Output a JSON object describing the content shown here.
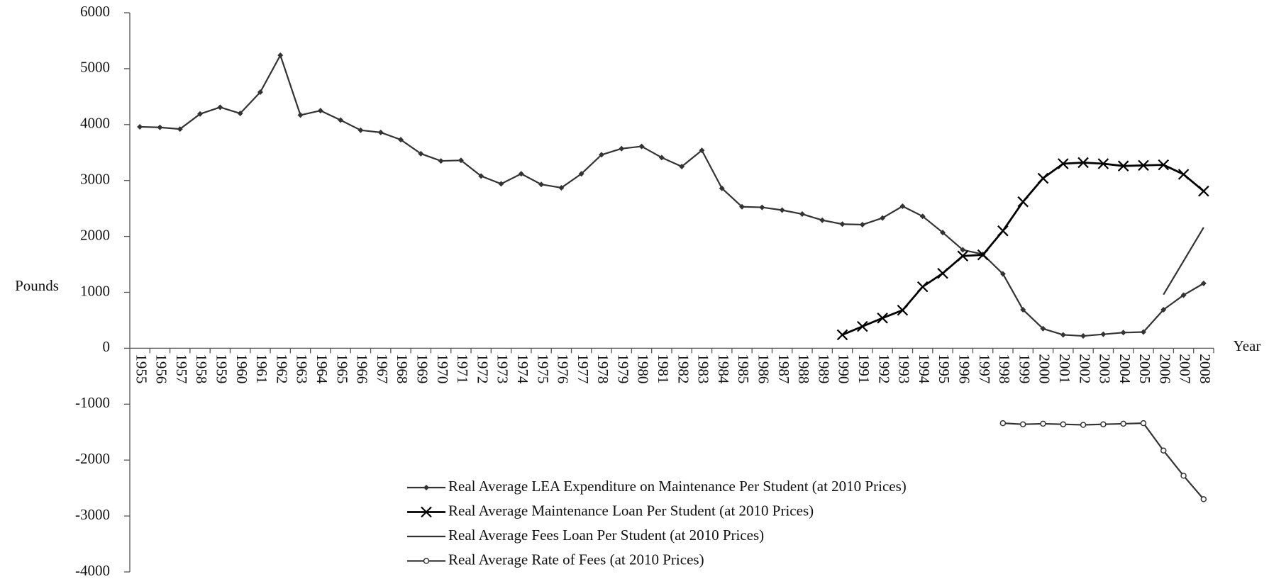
{
  "chart_data": {
    "type": "line",
    "x_label": "Year",
    "y_label": "Pounds",
    "categories": [
      1955,
      1956,
      1957,
      1958,
      1959,
      1960,
      1961,
      1962,
      1963,
      1964,
      1965,
      1966,
      1967,
      1968,
      1969,
      1970,
      1971,
      1972,
      1973,
      1974,
      1975,
      1976,
      1977,
      1978,
      1979,
      1980,
      1981,
      1982,
      1983,
      1984,
      1985,
      1986,
      1987,
      1988,
      1989,
      1990,
      1991,
      1992,
      1993,
      1994,
      1995,
      1996,
      1997,
      1998,
      1999,
      2000,
      2001,
      2002,
      2003,
      2004,
      2005,
      2006,
      2007,
      2008
    ],
    "ylim": [
      -4000,
      6000
    ],
    "yticks": [
      -4000,
      -3000,
      -2000,
      -1000,
      0,
      1000,
      2000,
      3000,
      4000,
      5000,
      6000
    ],
    "series": [
      {
        "name": "Real Average LEA Expenditure on Maintenance Per Student (at 2010 Prices)",
        "color": "#333333",
        "marker": "diamond",
        "values": [
          3960,
          3950,
          3920,
          4190,
          4310,
          4200,
          4580,
          5240,
          4170,
          4250,
          4080,
          3900,
          3860,
          3730,
          3480,
          3350,
          3360,
          3080,
          2940,
          3120,
          2930,
          2870,
          3120,
          3460,
          3570,
          3610,
          3410,
          3250,
          3540,
          2860,
          2530,
          2520,
          2470,
          2400,
          2290,
          2220,
          2210,
          2330,
          2540,
          2360,
          2070,
          1760,
          1680,
          1330,
          690,
          350,
          240,
          220,
          250,
          280,
          290,
          690,
          950,
          1160
        ]
      },
      {
        "name": "Real Average Maintenance Loan Per Student (at 2010 Prices)",
        "color": "#000000",
        "marker": "x",
        "values": [
          null,
          null,
          null,
          null,
          null,
          null,
          null,
          null,
          null,
          null,
          null,
          null,
          null,
          null,
          null,
          null,
          null,
          null,
          null,
          null,
          null,
          null,
          null,
          null,
          null,
          null,
          null,
          null,
          null,
          null,
          null,
          null,
          null,
          null,
          null,
          240,
          390,
          540,
          680,
          1100,
          1340,
          1650,
          1670,
          2100,
          2620,
          3040,
          3300,
          3320,
          3300,
          3260,
          3270,
          3280,
          3110,
          2810
        ]
      },
      {
        "name": "Real Average Fees Loan Per Student (at 2010 Prices)",
        "color": "#333333",
        "marker": "none",
        "values": [
          null,
          null,
          null,
          null,
          null,
          null,
          null,
          null,
          null,
          null,
          null,
          null,
          null,
          null,
          null,
          null,
          null,
          null,
          null,
          null,
          null,
          null,
          null,
          null,
          null,
          null,
          null,
          null,
          null,
          null,
          null,
          null,
          null,
          null,
          null,
          null,
          null,
          null,
          null,
          null,
          null,
          null,
          null,
          null,
          null,
          null,
          null,
          null,
          null,
          null,
          null,
          960,
          1560,
          2160
        ]
      },
      {
        "name": "Real Average Rate of Fees (at 2010 Prices)",
        "color": "#333333",
        "marker": "circle",
        "values": [
          null,
          null,
          null,
          null,
          null,
          null,
          null,
          null,
          null,
          null,
          null,
          null,
          null,
          null,
          null,
          null,
          null,
          null,
          null,
          null,
          null,
          null,
          null,
          null,
          null,
          null,
          null,
          null,
          null,
          null,
          null,
          null,
          null,
          null,
          null,
          null,
          null,
          null,
          null,
          null,
          null,
          null,
          null,
          -1340,
          -1360,
          -1350,
          -1360,
          -1370,
          -1360,
          -1350,
          -1340,
          -1830,
          -2280,
          -2700
        ]
      }
    ]
  }
}
